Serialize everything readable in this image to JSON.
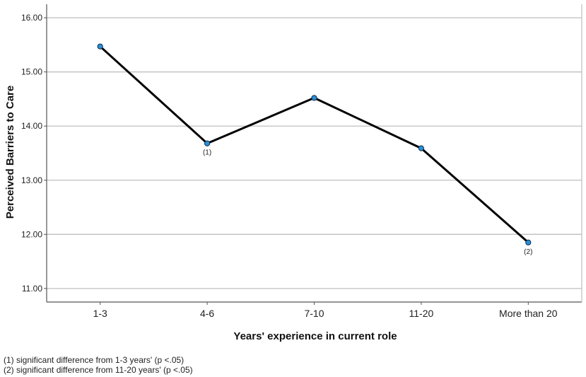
{
  "chart_data": {
    "type": "line",
    "categories": [
      "1-3",
      "4-6",
      "7-10",
      "11-20",
      "More than 20"
    ],
    "values": [
      15.47,
      13.68,
      14.52,
      13.59,
      11.85
    ],
    "xlabel": "Years' experience in current role",
    "ylabel": "Perceived Barriers to Care",
    "ylim": [
      10.75,
      16.25
    ],
    "yticks": [
      "11.00",
      "12.00",
      "13.00",
      "14.00",
      "15.00",
      "16.00"
    ],
    "grid": "horizontal",
    "annotations": [
      {
        "category": "4-6",
        "text": "(1)"
      },
      {
        "category": "More than 20",
        "text": "(2)"
      }
    ],
    "colors": {
      "line": "#000000",
      "marker": "#2b8fd6",
      "grid": "#bfbfbf"
    }
  },
  "footnotes": [
    "(1) significant difference from 1-3 years' (p <.05)",
    "(2) significant difference from 11-20 years' (p <.05)"
  ]
}
